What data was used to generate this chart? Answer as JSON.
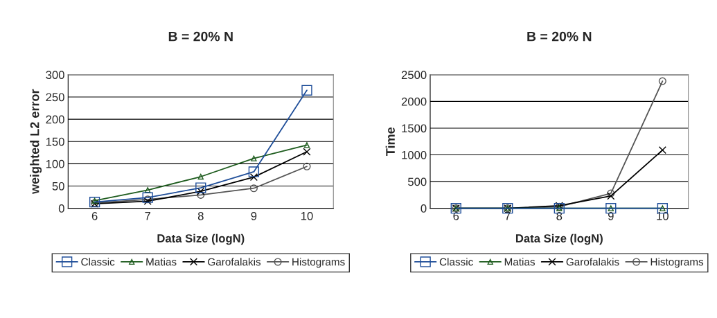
{
  "chart_data": [
    {
      "type": "line",
      "title": "B = 20% N",
      "xlabel": "Data Size (logN)",
      "ylabel": "weighted L2 error",
      "categories": [
        "6",
        "7",
        "8",
        "9",
        "10"
      ],
      "ylim": [
        0,
        300
      ],
      "yticks": [
        0,
        50,
        100,
        150,
        200,
        250,
        300
      ],
      "grid": "y",
      "legend": "bottom",
      "series": [
        {
          "name": "Classic",
          "color": "#1f4e99",
          "marker": "square",
          "values": [
            14,
            24,
            46,
            82,
            265
          ]
        },
        {
          "name": "Matias",
          "color": "#1e5c1e",
          "marker": "triangle",
          "values": [
            17,
            41,
            71,
            112,
            142
          ]
        },
        {
          "name": "Garofalakis",
          "color": "#000000",
          "marker": "cross",
          "values": [
            10,
            16,
            38,
            70,
            127
          ]
        },
        {
          "name": "Histograms",
          "color": "#555555",
          "marker": "circle",
          "values": [
            12,
            20,
            30,
            45,
            94
          ]
        }
      ]
    },
    {
      "type": "line",
      "title": "B = 20% N",
      "xlabel": "Data Size (logN)",
      "ylabel": "Time",
      "categories": [
        "6",
        "7",
        "8",
        "9",
        "10"
      ],
      "ylim": [
        0,
        2500
      ],
      "yticks": [
        0,
        500,
        1000,
        1500,
        2000,
        2500
      ],
      "grid": "y",
      "legend": "bottom",
      "series": [
        {
          "name": "Classic",
          "color": "#1f4e99",
          "marker": "square",
          "values": [
            0,
            0,
            0,
            0,
            0
          ]
        },
        {
          "name": "Matias",
          "color": "#1e5c1e",
          "marker": "triangle",
          "values": [
            0,
            0,
            0,
            0,
            0
          ]
        },
        {
          "name": "Garofalakis",
          "color": "#000000",
          "marker": "cross",
          "values": [
            0,
            0,
            50,
            230,
            1090
          ]
        },
        {
          "name": "Histograms",
          "color": "#555555",
          "marker": "circle",
          "values": [
            0,
            0,
            30,
            280,
            2380
          ]
        }
      ]
    }
  ]
}
